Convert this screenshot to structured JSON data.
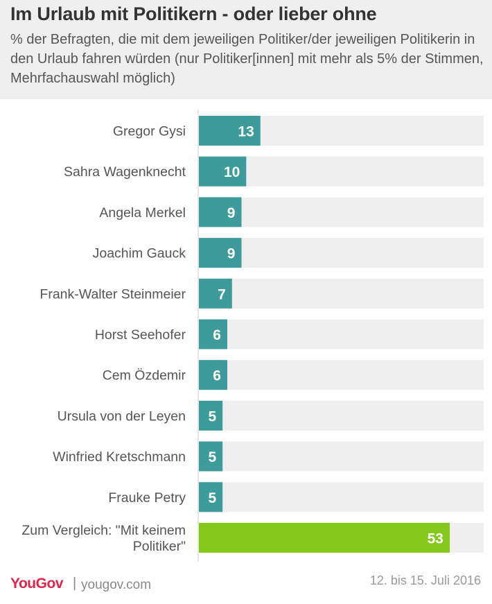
{
  "title": "Im Urlaub mit Politikern - oder lieber ohne",
  "subtitle": "% der Befragten, die mit dem jeweiligen Politiker/der jeweiligen Politikerin in den Urlaub fahren würden (nur Politiker[innen] mit mehr als 5% der Stimmen, Mehrfachauswahl möglich)",
  "footer": {
    "brand": "YouGov",
    "separator": "|",
    "url": "yougov.com",
    "date": "12. bis 15. Juli 2016"
  },
  "colors": {
    "bar": "#3e9b9b",
    "highlight": "#84c81c",
    "track": "#efefef"
  },
  "chart_data": {
    "type": "bar",
    "orientation": "horizontal",
    "categories": [
      "Gregor Gysi",
      "Sahra Wagenknecht",
      "Angela Merkel",
      "Joachim Gauck",
      "Frank-Walter Steinmeier",
      "Horst Seehofer",
      "Cem Özdemir",
      "Ursula von der Leyen",
      "Winfried Kretschmann",
      "Frauke Petry",
      "Zum Vergleich: \"Mit keinem Politiker\""
    ],
    "values": [
      13,
      10,
      9,
      9,
      7,
      6,
      6,
      5,
      5,
      5,
      53
    ],
    "highlight_index": 10,
    "xlim": [
      0,
      60
    ],
    "grid": false
  }
}
